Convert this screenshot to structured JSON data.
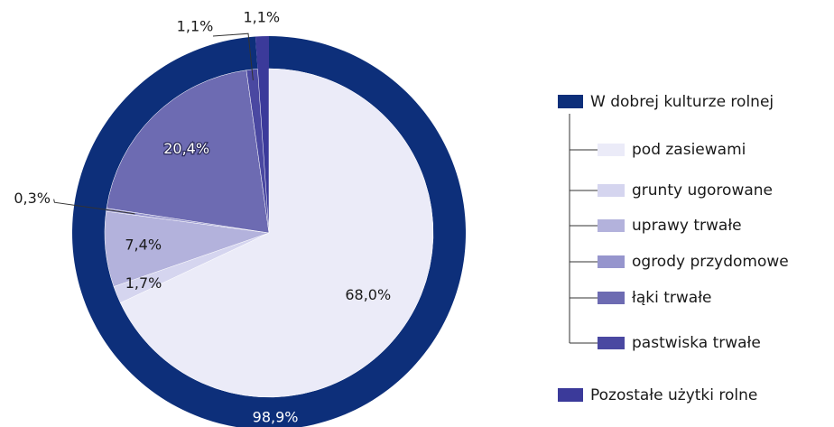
{
  "chart_data": {
    "type": "pie",
    "categories": [
      "pod zasiewami",
      "grunty ugorowane",
      "uprawy trwałe",
      "ogrody przydomowe",
      "łąki trwałe",
      "pastwiska trwałe"
    ],
    "values": [
      68.0,
      1.7,
      7.4,
      0.3,
      20.4,
      1.1
    ],
    "value_labels": [
      "68,0%",
      "1,7%",
      "7,4%",
      "0,3%",
      "20,4%",
      "1,1%"
    ],
    "colors": [
      "#ebebf8",
      "#d5d5ef",
      "#b3b2dc",
      "#9695cd",
      "#6d6bb2",
      "#4a48a1"
    ],
    "outer": {
      "categories": [
        "W dobrej kulturze rolnej",
        "Pozostałe użytki rolne"
      ],
      "values": [
        98.9,
        1.1
      ],
      "value_labels": [
        "98,9%",
        "1,1%"
      ],
      "colors": [
        "#0d2f7a",
        "#3b3a9a"
      ]
    }
  }
}
